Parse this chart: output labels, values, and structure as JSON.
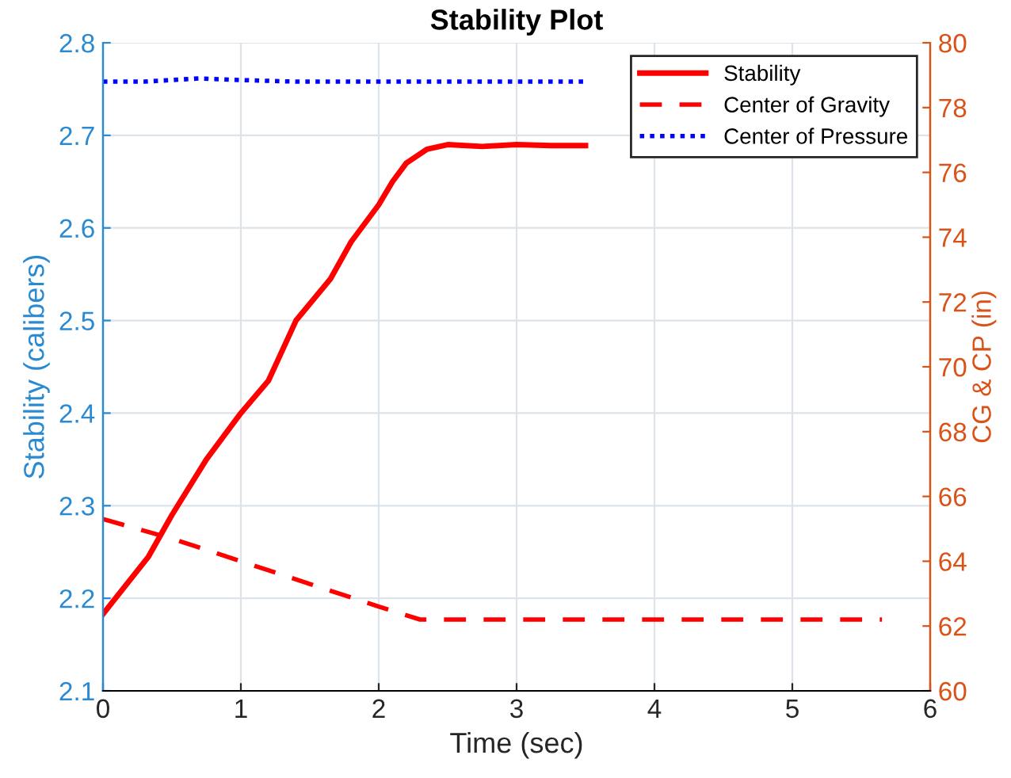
{
  "chart_data": {
    "type": "line",
    "title": "Stability Plot",
    "xlabel": "Time (sec)",
    "ylabel": "Stability (calibers)",
    "y2label": "CG & CP (in)",
    "xlim": [
      0,
      6
    ],
    "xticks": [
      0,
      1,
      2,
      3,
      4,
      5,
      6
    ],
    "ylim": [
      2.1,
      2.8
    ],
    "yticks": [
      2.1,
      2.2,
      2.3,
      2.4,
      2.5,
      2.6,
      2.7,
      2.8
    ],
    "y2lim": [
      60,
      80
    ],
    "y2ticks": [
      60,
      62,
      64,
      66,
      68,
      70,
      72,
      74,
      76,
      78,
      80
    ],
    "grid": true,
    "legend": "top right",
    "series": [
      {
        "name": "Stability",
        "color": "#ff0000",
        "line_style": "solid",
        "x": [
          0,
          0.33,
          0.5,
          0.75,
          1,
          1.2,
          1.4,
          1.65,
          1.8,
          2,
          2.1,
          2.2,
          2.35,
          2.5,
          2.75,
          3,
          3.25,
          3.5
        ],
        "values": [
          2.183,
          2.245,
          2.29,
          2.35,
          2.4,
          2.435,
          2.5,
          2.545,
          2.585,
          2.625,
          2.65,
          2.67,
          2.685,
          2.69,
          2.688,
          2.69,
          2.689,
          2.689
        ]
      },
      {
        "name": "Center of Gravity",
        "color": "#ff0000",
        "line_style": "dashed",
        "axis": "y2",
        "x": [
          0,
          0.5,
          1,
          1.5,
          2,
          2.3,
          2.4,
          5.65
        ],
        "values": [
          65.3,
          64.7,
          64.0,
          63.3,
          62.6,
          62.2,
          62.2,
          62.2
        ]
      },
      {
        "name": "Center of Pressure",
        "color": "#0000ff",
        "line_style": "dotted",
        "axis": "y2",
        "x": [
          0,
          0.3,
          0.7,
          1,
          1.4,
          2,
          3,
          3.5
        ],
        "values": [
          78.8,
          78.8,
          78.9,
          78.85,
          78.8,
          78.8,
          78.8,
          78.8
        ]
      }
    ]
  }
}
